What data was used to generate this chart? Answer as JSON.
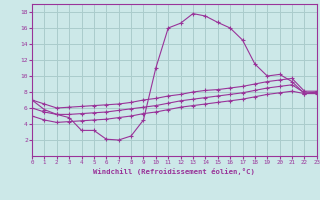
{
  "background_color": "#cce8e8",
  "grid_color": "#aacccc",
  "line_color": "#993399",
  "xlabel": "Windchill (Refroidissement éolien,°C)",
  "xlim": [
    0,
    23
  ],
  "ylim": [
    0,
    19
  ],
  "xticks": [
    0,
    1,
    2,
    3,
    4,
    5,
    6,
    7,
    8,
    9,
    10,
    11,
    12,
    13,
    14,
    15,
    16,
    17,
    18,
    19,
    20,
    21,
    22,
    23
  ],
  "yticks": [
    2,
    4,
    6,
    8,
    10,
    12,
    14,
    16,
    18
  ],
  "line1_x": [
    0,
    1,
    2,
    3,
    4,
    5,
    6,
    7,
    8,
    9,
    10,
    11,
    12,
    13,
    14,
    15,
    16,
    17,
    18,
    19,
    20,
    21,
    22,
    23
  ],
  "line1_y": [
    7.0,
    5.8,
    5.2,
    4.8,
    3.2,
    3.2,
    2.1,
    2.0,
    2.5,
    4.5,
    11.0,
    16.0,
    16.6,
    17.8,
    17.5,
    16.7,
    16.0,
    14.5,
    11.5,
    10.0,
    10.2,
    9.3,
    7.8,
    8.0
  ],
  "line2_x": [
    0,
    1,
    2,
    3,
    4,
    5,
    6,
    7,
    8,
    9,
    10,
    11,
    12,
    13,
    14,
    15,
    16,
    17,
    18,
    19,
    20,
    21,
    22,
    23
  ],
  "line2_y": [
    7.0,
    6.5,
    6.0,
    6.1,
    6.2,
    6.3,
    6.4,
    6.5,
    6.7,
    7.0,
    7.2,
    7.5,
    7.7,
    8.0,
    8.2,
    8.3,
    8.5,
    8.7,
    9.0,
    9.3,
    9.5,
    9.7,
    8.1,
    8.1
  ],
  "line3_x": [
    0,
    1,
    2,
    3,
    4,
    5,
    6,
    7,
    8,
    9,
    10,
    11,
    12,
    13,
    14,
    15,
    16,
    17,
    18,
    19,
    20,
    21,
    22,
    23
  ],
  "line3_y": [
    6.0,
    5.5,
    5.2,
    5.2,
    5.3,
    5.4,
    5.5,
    5.7,
    5.9,
    6.1,
    6.3,
    6.6,
    6.9,
    7.1,
    7.3,
    7.5,
    7.7,
    7.9,
    8.2,
    8.5,
    8.7,
    8.9,
    7.9,
    7.9
  ],
  "line4_x": [
    0,
    1,
    2,
    3,
    4,
    5,
    6,
    7,
    8,
    9,
    10,
    11,
    12,
    13,
    14,
    15,
    16,
    17,
    18,
    19,
    20,
    21,
    22,
    23
  ],
  "line4_y": [
    5.0,
    4.5,
    4.2,
    4.3,
    4.4,
    4.5,
    4.6,
    4.8,
    5.0,
    5.3,
    5.5,
    5.8,
    6.1,
    6.3,
    6.5,
    6.7,
    6.9,
    7.1,
    7.4,
    7.7,
    7.9,
    8.1,
    7.8,
    7.8
  ]
}
